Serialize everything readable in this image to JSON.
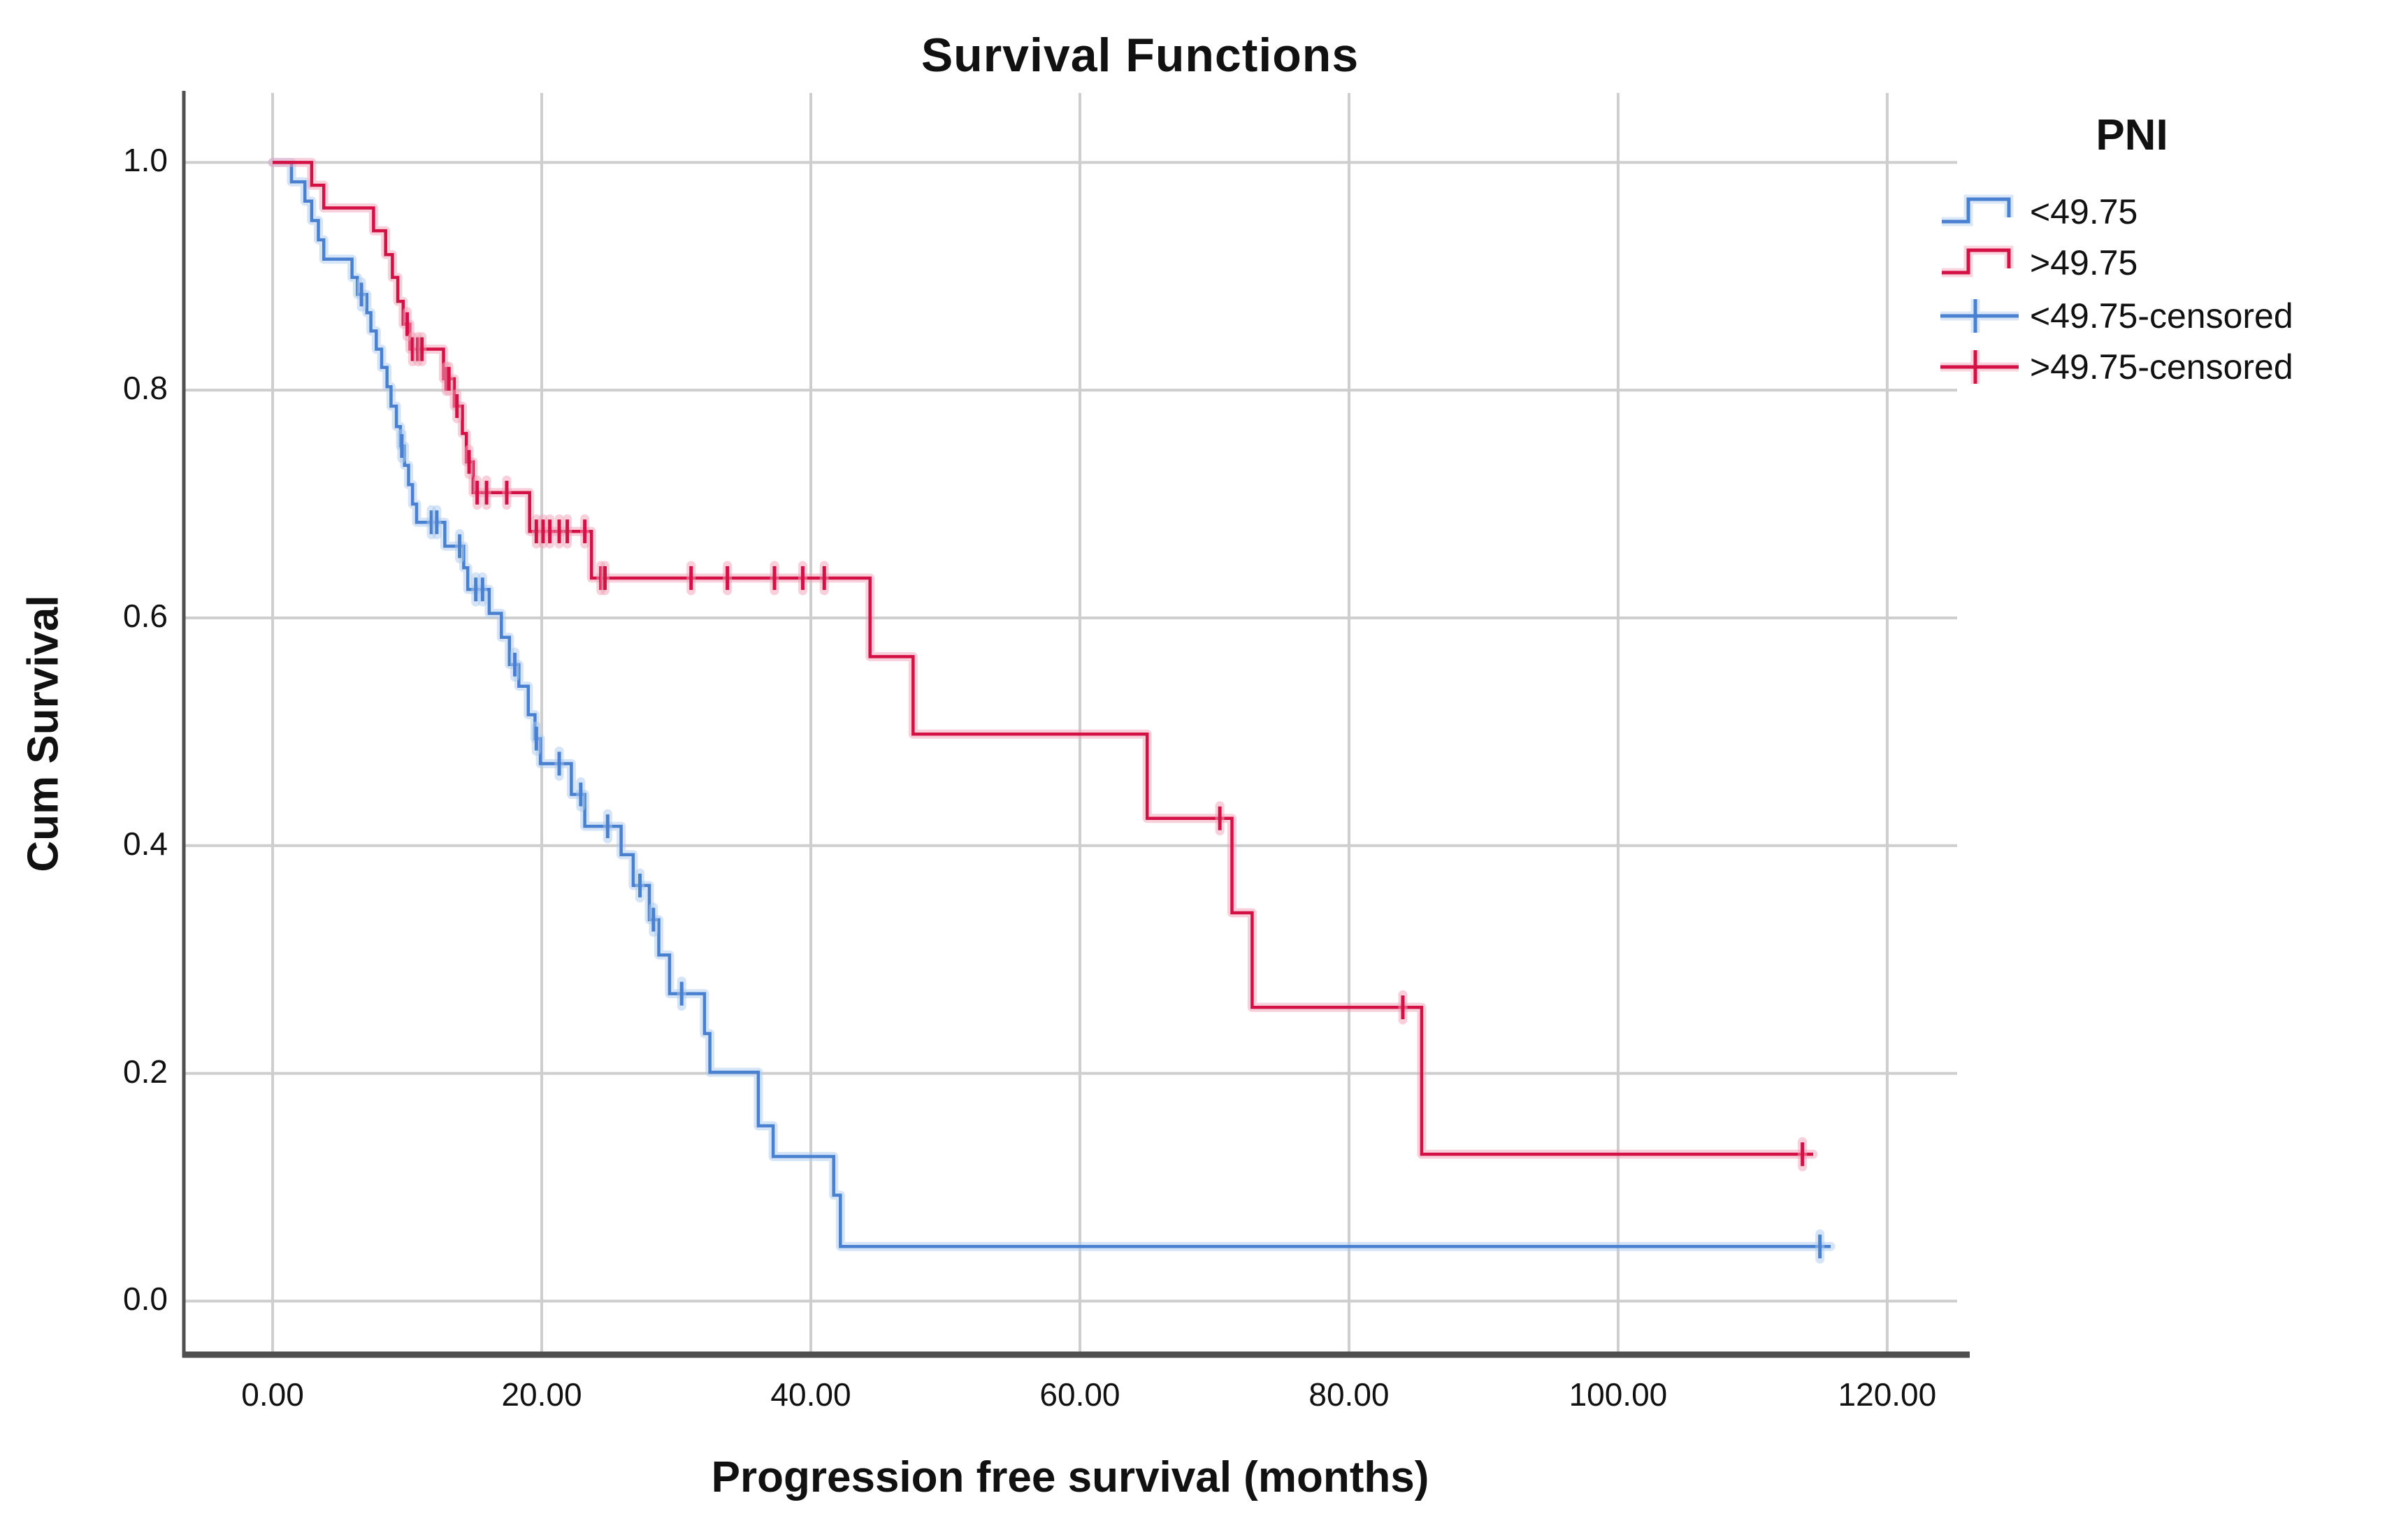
{
  "chart_data": {
    "type": "line",
    "subtype": "kaplan-meier-step-survival",
    "title": "Survival Functions",
    "xlabel": "Progression free survival (months)",
    "ylabel": "Cum Survival",
    "grid": true,
    "legend_position": "right",
    "xlim": [
      -6.6,
      125.2
    ],
    "ylim": [
      -0.047,
      1.061
    ],
    "x_ticks": [
      {
        "value": 0,
        "label": "0.00"
      },
      {
        "value": 20,
        "label": "20.00"
      },
      {
        "value": 40,
        "label": "40.00"
      },
      {
        "value": 60,
        "label": "60.00"
      },
      {
        "value": 80,
        "label": "80.00"
      },
      {
        "value": 100,
        "label": "100.00"
      },
      {
        "value": 120,
        "label": "120.00"
      }
    ],
    "y_ticks": [
      {
        "value": 1.0,
        "label": "1.0"
      },
      {
        "value": 0.8,
        "label": "0.8"
      },
      {
        "value": 0.6,
        "label": "0.6"
      },
      {
        "value": 0.4,
        "label": "0.4"
      },
      {
        "value": 0.2,
        "label": "0.2"
      },
      {
        "value": 0.0,
        "label": "0.0"
      }
    ],
    "colors": {
      "grid": "#cecece",
      "axis": "#4f4f4f",
      "text": "#111111",
      "background": "#ffffff"
    },
    "series": [
      {
        "name": "<49.75",
        "color": "#4a80d0",
        "halo": "#abc9ee",
        "points": [
          [
            0,
            1.0
          ],
          [
            1.4,
            0.983
          ],
          [
            2.4,
            0.966
          ],
          [
            2.9,
            0.949
          ],
          [
            3.4,
            0.932
          ],
          [
            3.8,
            0.915
          ],
          [
            5.9,
            0.899
          ],
          [
            6.3,
            0.884
          ],
          [
            7.0,
            0.868
          ],
          [
            7.3,
            0.852
          ],
          [
            7.7,
            0.836
          ],
          [
            8.1,
            0.82
          ],
          [
            8.5,
            0.803
          ],
          [
            8.8,
            0.786
          ],
          [
            9.2,
            0.768
          ],
          [
            9.5,
            0.751
          ],
          [
            9.8,
            0.734
          ],
          [
            10.1,
            0.717
          ],
          [
            10.4,
            0.7
          ],
          [
            10.7,
            0.684
          ],
          [
            12.8,
            0.663
          ],
          [
            14.2,
            0.644
          ],
          [
            14.5,
            0.625
          ],
          [
            16.1,
            0.604
          ],
          [
            17.0,
            0.583
          ],
          [
            17.6,
            0.559
          ],
          [
            18.3,
            0.54
          ],
          [
            19.0,
            0.515
          ],
          [
            19.5,
            0.494
          ],
          [
            19.9,
            0.472
          ],
          [
            22.2,
            0.445
          ],
          [
            23.2,
            0.417
          ],
          [
            25.9,
            0.392
          ],
          [
            26.8,
            0.365
          ],
          [
            28.0,
            0.335
          ],
          [
            28.7,
            0.304
          ],
          [
            29.5,
            0.27
          ],
          [
            32.1,
            0.235
          ],
          [
            32.5,
            0.201
          ],
          [
            36.1,
            0.154
          ],
          [
            37.2,
            0.127
          ],
          [
            41.7,
            0.093
          ],
          [
            42.2,
            0.048
          ],
          [
            115.8,
            0.048
          ]
        ],
        "censors": [
          [
            6.6,
            0.884
          ],
          [
            9.6,
            0.751
          ],
          [
            11.8,
            0.684
          ],
          [
            12.2,
            0.684
          ],
          [
            13.9,
            0.663
          ],
          [
            15.1,
            0.625
          ],
          [
            15.6,
            0.625
          ],
          [
            18.0,
            0.559
          ],
          [
            19.6,
            0.494
          ],
          [
            21.3,
            0.472
          ],
          [
            22.9,
            0.445
          ],
          [
            24.9,
            0.417
          ],
          [
            27.3,
            0.365
          ],
          [
            28.3,
            0.335
          ],
          [
            30.4,
            0.27
          ],
          [
            115.0,
            0.048
          ]
        ]
      },
      {
        "name": ">49.75",
        "color": "#d31145",
        "halo": "#f0a2b8",
        "points": [
          [
            0,
            1.0
          ],
          [
            2.9,
            0.98
          ],
          [
            3.8,
            0.96
          ],
          [
            7.5,
            0.94
          ],
          [
            8.4,
            0.919
          ],
          [
            8.9,
            0.899
          ],
          [
            9.3,
            0.878
          ],
          [
            9.7,
            0.858
          ],
          [
            10.2,
            0.836
          ],
          [
            12.7,
            0.81
          ],
          [
            13.5,
            0.786
          ],
          [
            14.1,
            0.762
          ],
          [
            14.4,
            0.737
          ],
          [
            14.9,
            0.71
          ],
          [
            19.1,
            0.676
          ],
          [
            23.7,
            0.635
          ],
          [
            44.4,
            0.566
          ],
          [
            47.6,
            0.498
          ],
          [
            65.0,
            0.424
          ],
          [
            71.3,
            0.341
          ],
          [
            72.8,
            0.258
          ],
          [
            85.4,
            0.129
          ],
          [
            114.5,
            0.129
          ]
        ],
        "censors": [
          [
            10.0,
            0.858
          ],
          [
            10.4,
            0.836
          ],
          [
            10.8,
            0.836
          ],
          [
            11.1,
            0.836
          ],
          [
            12.9,
            0.81
          ],
          [
            13.1,
            0.81
          ],
          [
            13.7,
            0.786
          ],
          [
            14.6,
            0.737
          ],
          [
            15.2,
            0.71
          ],
          [
            15.9,
            0.71
          ],
          [
            17.4,
            0.71
          ],
          [
            19.6,
            0.676
          ],
          [
            20.1,
            0.676
          ],
          [
            20.6,
            0.676
          ],
          [
            21.3,
            0.676
          ],
          [
            21.9,
            0.676
          ],
          [
            23.2,
            0.676
          ],
          [
            24.4,
            0.635
          ],
          [
            24.7,
            0.635
          ],
          [
            31.1,
            0.635
          ],
          [
            33.8,
            0.635
          ],
          [
            37.3,
            0.635
          ],
          [
            39.4,
            0.635
          ],
          [
            41.0,
            0.635
          ],
          [
            70.4,
            0.424
          ],
          [
            84.0,
            0.258
          ],
          [
            113.7,
            0.129
          ]
        ]
      }
    ],
    "legend": {
      "title": "PNI",
      "entries": [
        {
          "label": "<49.75",
          "series": 0,
          "type": "step-line"
        },
        {
          "label": ">49.75",
          "series": 1,
          "type": "step-line"
        },
        {
          "label": "<49.75-censored",
          "series": 0,
          "type": "censor"
        },
        {
          "label": ">49.75-censored",
          "series": 1,
          "type": "censor"
        }
      ]
    }
  }
}
